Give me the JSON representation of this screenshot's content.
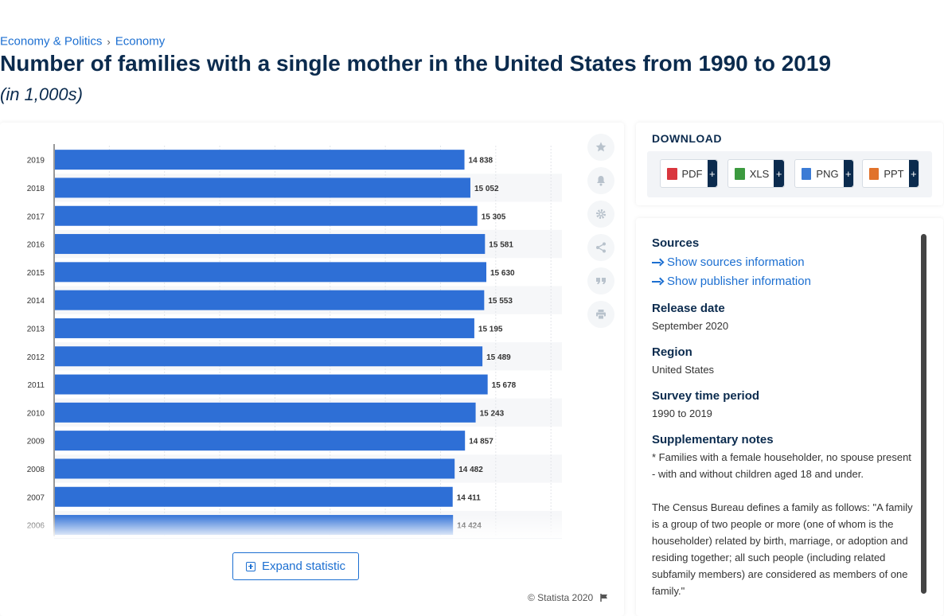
{
  "breadcrumb": {
    "items": [
      "Economy & Politics",
      "Economy"
    ]
  },
  "title": "Number of families with a single mother in the United States from 1990 to 2019",
  "subtitle": "(in 1,000s)",
  "chart_data": {
    "type": "bar",
    "orientation": "horizontal",
    "categories": [
      "2019",
      "2018",
      "2017",
      "2016",
      "2015",
      "2014",
      "2013",
      "2012",
      "2011",
      "2010",
      "2009",
      "2008",
      "2007",
      "2006"
    ],
    "values": [
      14838,
      15052,
      15305,
      15581,
      15630,
      15553,
      15195,
      15489,
      15678,
      15243,
      14857,
      14482,
      14411,
      14424
    ],
    "value_labels": [
      "14 838",
      "15 052",
      "15 305",
      "15 581",
      "15 630",
      "15 553",
      "15 195",
      "15 489",
      "15 678",
      "15 243",
      "14 857",
      "14 482",
      "14 411",
      "14 424"
    ],
    "xlim": [
      0,
      18000
    ],
    "grid": true,
    "bar_color": "#2e6fd6"
  },
  "chart_footer": {
    "expand_label": "Expand statistic",
    "copyright": "© Statista 2020"
  },
  "tools": [
    "star-icon",
    "bell-icon",
    "gear-icon",
    "share-icon",
    "quote-icon",
    "print-icon"
  ],
  "download": {
    "title": "DOWNLOAD",
    "buttons": [
      {
        "label": "PDF",
        "plus": "+",
        "color": "#d9363e"
      },
      {
        "label": "XLS",
        "plus": "+",
        "color": "#3c9a3f"
      },
      {
        "label": "PNG",
        "plus": "+",
        "color": "#3b7bd5"
      },
      {
        "label": "PPT",
        "plus": "+",
        "color": "#e1722b"
      }
    ]
  },
  "info": {
    "sources_heading": "Sources",
    "show_sources": "Show sources information",
    "show_publisher": "Show publisher information",
    "release_heading": "Release date",
    "release_value": "September 2020",
    "region_heading": "Region",
    "region_value": "United States",
    "survey_heading": "Survey time period",
    "survey_value": "1990 to 2019",
    "notes_heading": "Supplementary notes",
    "notes_1": "* Families with a female householder, no spouse present - with and without children aged 18 and under.",
    "notes_2": "The Census Bureau defines a family as follows: \"A family is a group of two people or more (one of whom is the householder) related by birth, marriage, or adoption and residing together; all such people (including related subfamily members) are considered as members of one family.\""
  }
}
